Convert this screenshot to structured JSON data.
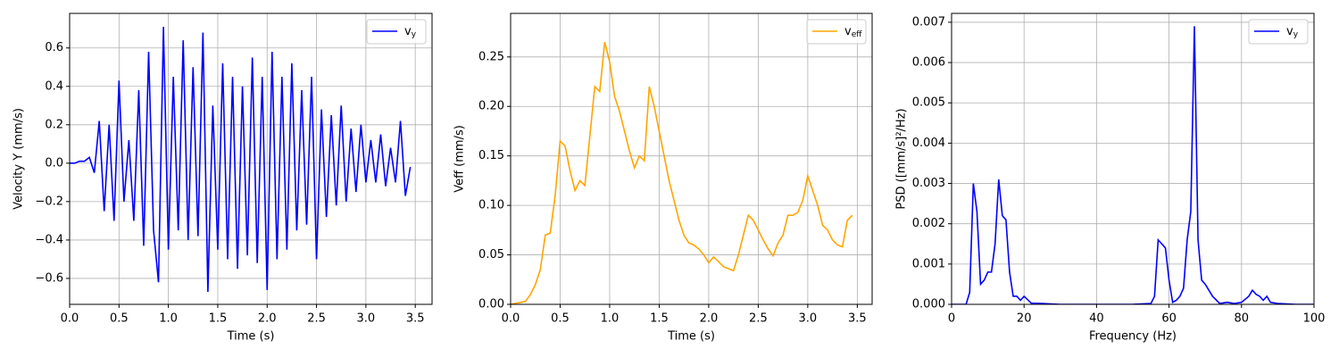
{
  "chart_data": [
    {
      "type": "line",
      "xlabel": "Time (s)",
      "ylabel": "Velocity Y (mm/s)",
      "x": [
        0,
        0.05,
        0.1,
        0.15,
        0.2,
        0.25,
        0.3,
        0.35,
        0.4,
        0.45,
        0.5,
        0.55,
        0.6,
        0.65,
        0.7,
        0.75,
        0.8,
        0.85,
        0.9,
        0.95,
        1.0,
        1.05,
        1.1,
        1.15,
        1.2,
        1.25,
        1.3,
        1.35,
        1.4,
        1.45,
        1.5,
        1.55,
        1.6,
        1.65,
        1.7,
        1.75,
        1.8,
        1.85,
        1.9,
        1.95,
        2.0,
        2.05,
        2.1,
        2.15,
        2.2,
        2.25,
        2.3,
        2.35,
        2.4,
        2.45,
        2.5,
        2.55,
        2.6,
        2.65,
        2.7,
        2.75,
        2.8,
        2.85,
        2.9,
        2.95,
        3.0,
        3.05,
        3.1,
        3.15,
        3.2,
        3.25,
        3.3,
        3.35,
        3.4,
        3.45
      ],
      "series": [
        {
          "name": "vy",
          "color": "#0000ff",
          "values": [
            0,
            0,
            0.01,
            0.01,
            0.03,
            -0.05,
            0.22,
            -0.25,
            0.2,
            -0.3,
            0.43,
            -0.2,
            0.12,
            -0.3,
            0.38,
            -0.43,
            0.58,
            -0.35,
            -0.62,
            0.71,
            -0.45,
            0.45,
            -0.35,
            0.64,
            -0.4,
            0.5,
            -0.38,
            0.68,
            -0.67,
            0.3,
            -0.45,
            0.52,
            -0.5,
            0.45,
            -0.55,
            0.4,
            -0.48,
            0.55,
            -0.52,
            0.45,
            -0.66,
            0.58,
            -0.5,
            0.45,
            -0.45,
            0.52,
            -0.35,
            0.38,
            -0.32,
            0.45,
            -0.5,
            0.28,
            -0.28,
            0.25,
            -0.22,
            0.3,
            -0.2,
            0.18,
            -0.15,
            0.2,
            -0.1,
            0.12,
            -0.1,
            0.15,
            -0.12,
            0.08,
            -0.1,
            0.22,
            -0.17,
            -0.02
          ]
        }
      ],
      "xlim": [
        0,
        3.67
      ],
      "ylim": [
        -0.735,
        0.78
      ],
      "xticks": [
        {
          "value": 0,
          "label": "0.0"
        },
        {
          "value": 0.5,
          "label": "0.5"
        },
        {
          "value": 1,
          "label": "1.0"
        },
        {
          "value": 1.5,
          "label": "1.5"
        },
        {
          "value": 2,
          "label": "2.0"
        },
        {
          "value": 2.5,
          "label": "2.5"
        },
        {
          "value": 3,
          "label": "3.0"
        },
        {
          "value": 3.5,
          "label": "3.5"
        }
      ],
      "yticks": [
        {
          "value": -0.6,
          "label": "−0.6"
        },
        {
          "value": -0.4,
          "label": "−0.4"
        },
        {
          "value": -0.2,
          "label": "−0.2"
        },
        {
          "value": 0,
          "label": "0.0"
        },
        {
          "value": 0.2,
          "label": "0.2"
        },
        {
          "value": 0.4,
          "label": "0.4"
        },
        {
          "value": 0.6,
          "label": "0.6"
        }
      ],
      "grid": true,
      "legend": "upper right"
    },
    {
      "type": "line",
      "xlabel": "Time (s)",
      "ylabel": "Veff (mm/s)",
      "x": [
        0,
        0.05,
        0.1,
        0.15,
        0.2,
        0.25,
        0.3,
        0.35,
        0.4,
        0.45,
        0.5,
        0.55,
        0.6,
        0.65,
        0.7,
        0.75,
        0.8,
        0.85,
        0.9,
        0.95,
        1.0,
        1.05,
        1.1,
        1.15,
        1.2,
        1.25,
        1.3,
        1.35,
        1.4,
        1.45,
        1.5,
        1.55,
        1.6,
        1.65,
        1.7,
        1.75,
        1.8,
        1.85,
        1.9,
        1.95,
        2.0,
        2.05,
        2.1,
        2.15,
        2.2,
        2.25,
        2.3,
        2.35,
        2.4,
        2.45,
        2.5,
        2.55,
        2.6,
        2.65,
        2.7,
        2.75,
        2.8,
        2.85,
        2.9,
        2.95,
        3.0,
        3.05,
        3.1,
        3.15,
        3.2,
        3.25,
        3.3,
        3.35,
        3.4,
        3.45
      ],
      "series": [
        {
          "name": "veff",
          "color": "#ffa500",
          "values": [
            0,
            0.001,
            0.002,
            0.003,
            0.01,
            0.02,
            0.035,
            0.07,
            0.072,
            0.11,
            0.165,
            0.16,
            0.135,
            0.115,
            0.125,
            0.12,
            0.17,
            0.22,
            0.215,
            0.265,
            0.245,
            0.21,
            0.195,
            0.175,
            0.155,
            0.138,
            0.15,
            0.145,
            0.22,
            0.2,
            0.175,
            0.15,
            0.125,
            0.105,
            0.085,
            0.07,
            0.062,
            0.06,
            0.056,
            0.05,
            0.042,
            0.048,
            0.043,
            0.038,
            0.036,
            0.034,
            0.05,
            0.07,
            0.09,
            0.085,
            0.075,
            0.065,
            0.056,
            0.049,
            0.062,
            0.07,
            0.09,
            0.09,
            0.093,
            0.105,
            0.13,
            0.115,
            0.1,
            0.08,
            0.075,
            0.065,
            0.06,
            0.058,
            0.085,
            0.09
          ]
        }
      ],
      "xlim": [
        0,
        3.65
      ],
      "ylim": [
        0,
        0.294
      ],
      "xticks": [
        {
          "value": 0,
          "label": "0.0"
        },
        {
          "value": 0.5,
          "label": "0.5"
        },
        {
          "value": 1,
          "label": "1.0"
        },
        {
          "value": 1.5,
          "label": "1.5"
        },
        {
          "value": 2,
          "label": "2.0"
        },
        {
          "value": 2.5,
          "label": "2.5"
        },
        {
          "value": 3,
          "label": "3.0"
        },
        {
          "value": 3.5,
          "label": "3.5"
        }
      ],
      "yticks": [
        {
          "value": 0,
          "label": "0.00"
        },
        {
          "value": 0.05,
          "label": "0.05"
        },
        {
          "value": 0.1,
          "label": "0.10"
        },
        {
          "value": 0.15,
          "label": "0.15"
        },
        {
          "value": 0.2,
          "label": "0.20"
        },
        {
          "value": 0.25,
          "label": "0.25"
        }
      ],
      "grid": true,
      "legend": "upper right"
    },
    {
      "type": "line",
      "xlabel": "Frequency (Hz)",
      "ylabel": "PSD ([mm/s]²/Hz)",
      "x": [
        0,
        2,
        4,
        5,
        6,
        7,
        8,
        9,
        10,
        11,
        12,
        13,
        14,
        15,
        16,
        17,
        18,
        19,
        20,
        22,
        25,
        30,
        40,
        50,
        55,
        56,
        57,
        58,
        59,
        60,
        61,
        62,
        63,
        64,
        65,
        66,
        67,
        68,
        69,
        70,
        72,
        74,
        76,
        78,
        80,
        82,
        83,
        84,
        85,
        86,
        87,
        88,
        90,
        95,
        100
      ],
      "series": [
        {
          "name": "vy",
          "color": "#0000ff",
          "values": [
            0,
            0,
            0,
            0.0003,
            0.003,
            0.0023,
            0.0005,
            0.0006,
            0.0008,
            0.0008,
            0.0015,
            0.0031,
            0.0022,
            0.0021,
            0.0008,
            0.0002,
            0.0002,
            0.0001,
            0.0002,
            3e-05,
            2e-05,
            0,
            0,
            0,
            2e-05,
            0.0002,
            0.0016,
            0.0015,
            0.0014,
            0.0006,
            5e-05,
            0.0001,
            0.0002,
            0.0004,
            0.0016,
            0.0023,
            0.0069,
            0.0016,
            0.0006,
            0.0005,
            0.0002,
            2e-05,
            5e-05,
            2e-05,
            5e-05,
            0.0002,
            0.00035,
            0.00025,
            0.0002,
            0.0001,
            0.0002,
            5e-05,
            2e-05,
            0,
            0
          ]
        }
      ],
      "xlim": [
        0,
        100
      ],
      "ylim": [
        0,
        0.00722
      ],
      "xticks": [
        0,
        20,
        40,
        60,
        80,
        100
      ],
      "yticks": [
        {
          "value": 0,
          "label": "0.000"
        },
        {
          "value": 0.001,
          "label": "0.001"
        },
        {
          "value": 0.002,
          "label": "0.002"
        },
        {
          "value": 0.003,
          "label": "0.003"
        },
        {
          "value": 0.004,
          "label": "0.004"
        },
        {
          "value": 0.005,
          "label": "0.005"
        },
        {
          "value": 0.006,
          "label": "0.006"
        },
        {
          "value": 0.007,
          "label": "0.007"
        }
      ],
      "grid": true,
      "legend": "upper right"
    }
  ]
}
